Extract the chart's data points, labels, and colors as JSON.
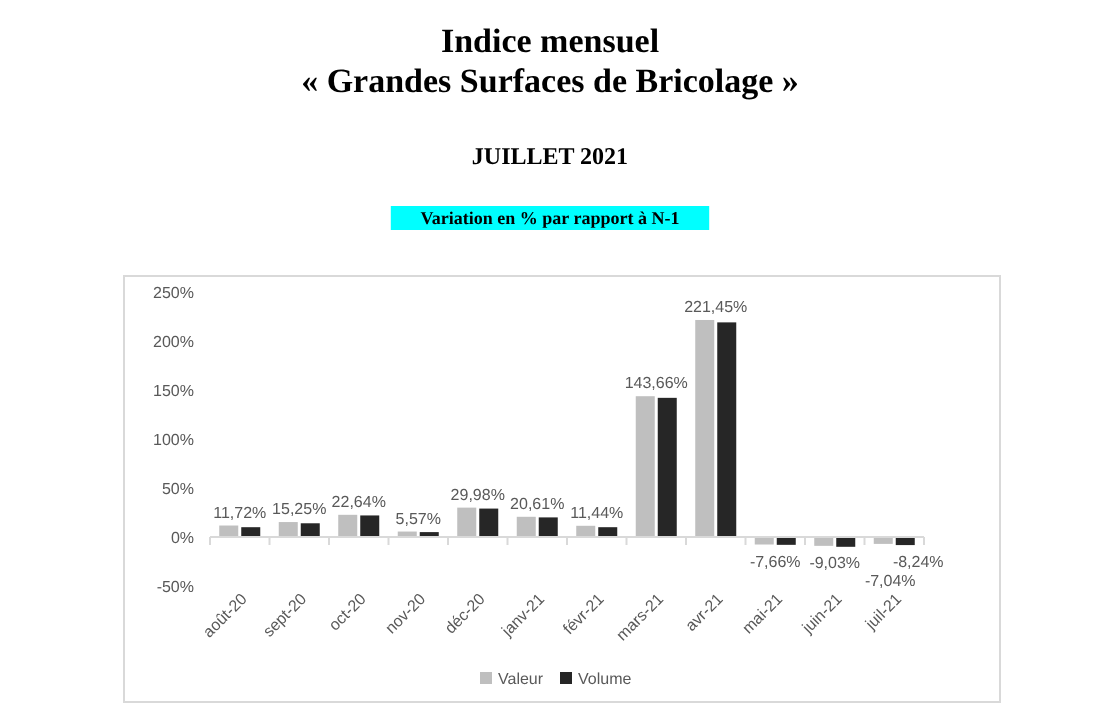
{
  "chart_data": {
    "type": "bar",
    "title": "Indice mensuel\n« Grandes Surfaces de Bricolage »",
    "subtitle": "JUILLET 2021",
    "annotations": [
      "Variation en % par rapport à N-1"
    ],
    "categories": [
      "août-20",
      "sept-20",
      "oct-20",
      "nov-20",
      "déc-20",
      "janv-21",
      "févr-21",
      "mars-21",
      "avr-21",
      "mai-21",
      "juin-21",
      "juil-21"
    ],
    "series": [
      {
        "name": "Valeur",
        "color": "#bfbfbf",
        "values": [
          11.72,
          15.25,
          22.64,
          5.57,
          29.98,
          20.61,
          11.44,
          143.66,
          221.45,
          -7.66,
          -9.03,
          -7.04
        ],
        "value_labels": [
          "11,72%",
          "15,25%",
          "22,64%",
          "5,57%",
          "29,98%",
          "20,61%",
          "11,44%",
          "143,66%",
          "221,45%",
          "-7,66%",
          "-9,03%",
          "-7,04%"
        ]
      },
      {
        "name": "Volume",
        "color": "#262626",
        "values": [
          10,
          14,
          22,
          5,
          29,
          20,
          10,
          142,
          219,
          -8,
          -10,
          -8.24
        ],
        "value_labels": [
          null,
          null,
          null,
          null,
          null,
          null,
          null,
          null,
          null,
          null,
          null,
          "-8,24%"
        ]
      }
    ],
    "ylim": [
      -50,
      250
    ],
    "yticks": [
      {
        "value": -50,
        "label": "-50%"
      },
      {
        "value": 0,
        "label": "0%"
      },
      {
        "value": 50,
        "label": "50%"
      },
      {
        "value": 100,
        "label": "100%"
      },
      {
        "value": 150,
        "label": "150%"
      },
      {
        "value": 200,
        "label": "200%"
      },
      {
        "value": 250,
        "label": "250%"
      }
    ],
    "legend": "bottom"
  }
}
